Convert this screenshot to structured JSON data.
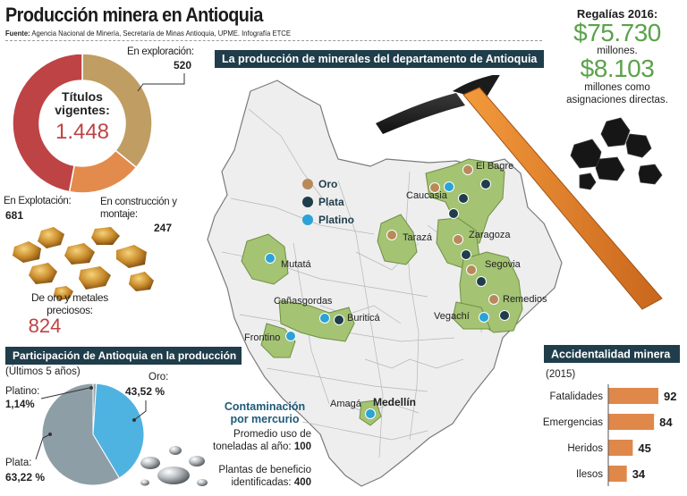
{
  "header": {
    "title": "Producción minera en Antioquia",
    "source_label": "Fuente:",
    "source_text": "Agencia Nacional de Minería, Secretaría de Minas Antioquia, UPME. Infografía ETCE"
  },
  "colors": {
    "dark_blue": "#1f3d4a",
    "gold": "#bf9d63",
    "orange": "#e38b4c",
    "red": "#be4344",
    "map_green": "#a4c373",
    "plata": "#1f3d4a",
    "platino": "#2aa3d8",
    "oro": "#b88a5a",
    "bar": "#e0884a",
    "money_green": "#5aa24a"
  },
  "titulos": {
    "center_label": "Títulos vigentes:",
    "center_value": "1.448",
    "exploracion_label": "En exploración:",
    "exploracion_value": "520",
    "explotacion_label": "En Explotación:",
    "explotacion_value": "681",
    "construccion_label": "En construcción y montaje:",
    "construccion_value": "247",
    "metales_label": "De oro y metales preciosos:",
    "metales_value": "824"
  },
  "map": {
    "banner": "La producción de minerales del departamento de Antioquia",
    "legend": [
      {
        "label": "Oro",
        "color": "#b88a5a"
      },
      {
        "label": "Plata",
        "color": "#1f3d4a"
      },
      {
        "label": "Platino",
        "color": "#2aa3d8"
      }
    ],
    "places": {
      "el_bagre": "El Bagre",
      "caucasia": "Caucasia",
      "taraza": "Tarazá",
      "zaragoza": "Zaragoza",
      "segovia": "Segovia",
      "remedios": "Remedios",
      "vegachi": "Vegachí",
      "mutata": "Mutatá",
      "canasgordas": "Cañasgordas",
      "buritica": "Buriticá",
      "frontino": "Frontino",
      "amaga": "Amagá",
      "medellin": "Medellín"
    }
  },
  "regalias": {
    "title": "Regalías 2016:",
    "value1": "$75.730",
    "unit1": "millones.",
    "value2": "$8.103",
    "unit2": "millones como asignaciones directas."
  },
  "participacion": {
    "title": "Participación de Antioquia en la producción",
    "subtitle": "(Últimos 5 años)",
    "platino_label": "Platino:",
    "platino_value": "1,14%",
    "oro_label": "Oro:",
    "oro_value": "43,52 %",
    "plata_label": "Plata:",
    "plata_value": "63,22 %"
  },
  "mercurio": {
    "title": "Contaminación por mercurio",
    "promedio_label": "Promedio uso de toneladas al año:",
    "promedio_value": "100",
    "plantas_label": "Plantas de beneficio identificadas:",
    "plantas_value": "400"
  },
  "chart_data": [
    {
      "type": "pie",
      "title": "Títulos vigentes: 1.448",
      "categories": [
        "En exploración",
        "En construcción y montaje",
        "En Explotación"
      ],
      "values": [
        520,
        247,
        681
      ],
      "colors": [
        "#bf9d63",
        "#e38b4c",
        "#be4344"
      ]
    },
    {
      "type": "pie",
      "title": "Participación de Antioquia en la producción",
      "subtitle": "(Últimos 5 años)",
      "categories": [
        "Platino",
        "Oro",
        "Plata"
      ],
      "values": [
        1.14,
        43.52,
        63.22
      ],
      "colors": [
        "#9aa7ad",
        "#4fb3e1",
        "#8e9ea6"
      ]
    },
    {
      "type": "bar",
      "title": "Accidentalidad minera",
      "subtitle": "(2015)",
      "categories": [
        "Fatalidades",
        "Emergencias",
        "Heridos",
        "Ilesos"
      ],
      "values": [
        92,
        84,
        45,
        34
      ],
      "xlim": [
        0,
        92
      ],
      "orientation": "horizontal",
      "color": "#e0884a"
    }
  ]
}
